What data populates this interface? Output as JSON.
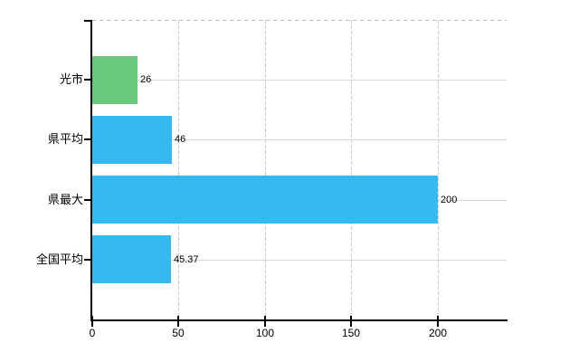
{
  "chart_data": {
    "type": "bar",
    "orientation": "horizontal",
    "categories": [
      "光市",
      "県平均",
      "県最大",
      "全国平均"
    ],
    "values": [
      26,
      46,
      200,
      45.37
    ],
    "value_labels": [
      "26",
      "46",
      "200",
      "45.37"
    ],
    "bar_colors": [
      "#67c97a",
      "#34baf0",
      "#34baf0",
      "#34baf0"
    ],
    "xlim": [
      0,
      240
    ],
    "xticks": [
      0,
      50,
      100,
      150,
      200
    ],
    "xtick_labels": [
      "0",
      "50",
      "100",
      "150",
      "200"
    ],
    "grid": true,
    "legend": false
  },
  "colors": {
    "background": "#ffffff",
    "axis": "#000000",
    "grid_horizontal": "#d2dcd2",
    "grid_vertical": "#cfcad0",
    "plot_top_border": "#c5c0c6",
    "text": "#000000"
  }
}
